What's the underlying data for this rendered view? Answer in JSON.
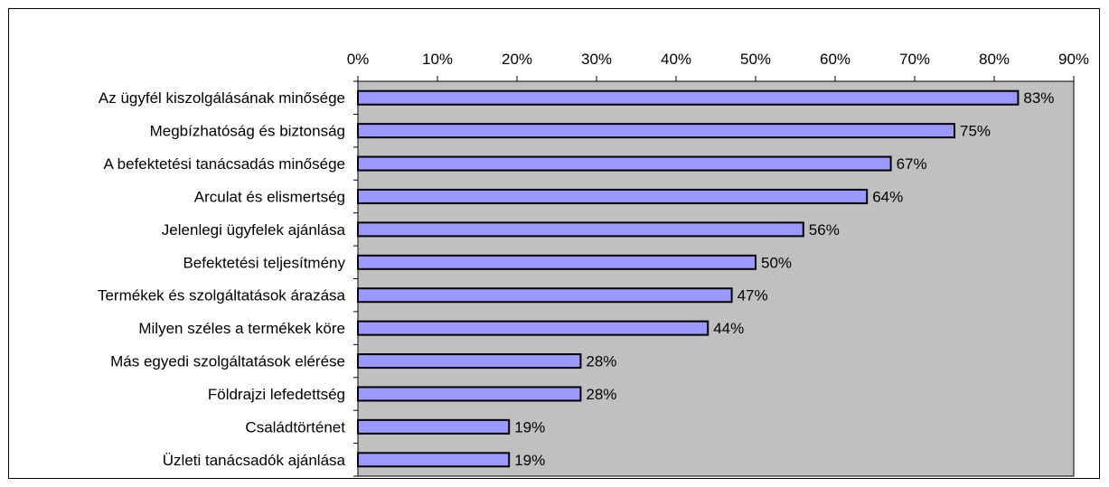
{
  "chart_data": {
    "type": "bar",
    "orientation": "horizontal",
    "title": "",
    "xlabel": "",
    "ylabel": "",
    "xlim": [
      0,
      90
    ],
    "xticks": [
      0,
      10,
      20,
      30,
      40,
      50,
      60,
      70,
      80,
      90
    ],
    "tick_labels": [
      "0%",
      "10%",
      "20%",
      "30%",
      "40%",
      "50%",
      "60%",
      "70%",
      "80%",
      "90%"
    ],
    "x_axis_position": "top",
    "grid": false,
    "legend": "none",
    "categories": [
      "Az ügyfél kiszolgálásának minősége",
      "Megbízhatóság és biztonság",
      "A befektetési tanácsadás minősége",
      "Arculat és elismertség",
      "Jelenlegi ügyfelek ajánlása",
      "Befektetési teljesítmény",
      "Termékek és szolgáltatások árazása",
      "Milyen széles a termékek köre",
      "Más egyedi szolgáltatások elérése",
      "Földrajzi lefedettség",
      "Családtörténet",
      "Üzleti tanácsadók ajánlása"
    ],
    "values": [
      83,
      75,
      67,
      64,
      56,
      50,
      47,
      44,
      28,
      28,
      19,
      19
    ],
    "data_labels": [
      "83%",
      "75%",
      "67%",
      "64%",
      "56%",
      "50%",
      "47%",
      "44%",
      "28%",
      "28%",
      "19%",
      "19%"
    ],
    "colors": {
      "bar_fill": "#9999ff",
      "bar_stroke": "#000000",
      "plot_background": "#c0c0c0",
      "axis": "#000000"
    }
  }
}
